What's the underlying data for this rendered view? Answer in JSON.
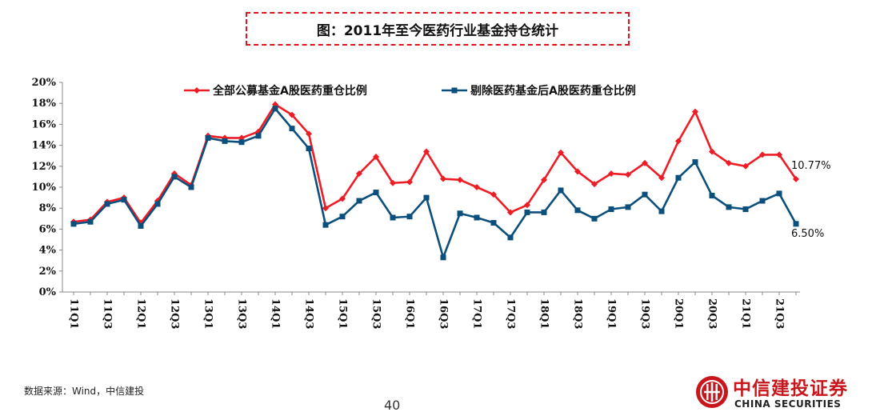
{
  "title": "图：2011年至今医药行业基金持仓统计",
  "source": "数据来源：Wind，中信建投",
  "page_number": "40",
  "logo": {
    "name_cn": "中信建投证券",
    "name_en": "CHINA SECURITIES",
    "icon": "china-securities-logo-icon",
    "color": "#c8161d"
  },
  "chart_data": {
    "type": "line",
    "x": [
      "11Q1",
      "11Q2",
      "11Q3",
      "11Q4",
      "12Q1",
      "12Q2",
      "12Q3",
      "12Q4",
      "13Q1",
      "13Q2",
      "13Q3",
      "13Q4",
      "14Q1",
      "14Q2",
      "14Q3",
      "14Q4",
      "15Q1",
      "15Q2",
      "15Q3",
      "15Q4",
      "16Q1",
      "16Q2",
      "16Q3",
      "16Q4",
      "17Q1",
      "17Q2",
      "17Q3",
      "17Q4",
      "18Q1",
      "18Q2",
      "18Q3",
      "18Q4",
      "19Q1",
      "19Q2",
      "19Q3",
      "19Q4",
      "20Q1",
      "20Q2",
      "20Q3",
      "20Q4",
      "21Q1",
      "21Q2",
      "21Q3",
      "21Q4"
    ],
    "tick_labels": [
      "11Q1",
      "11Q3",
      "12Q1",
      "12Q3",
      "13Q1",
      "13Q3",
      "14Q1",
      "14Q3",
      "15Q1",
      "15Q3",
      "16Q1",
      "16Q3",
      "17Q1",
      "17Q3",
      "18Q1",
      "18Q3",
      "19Q1",
      "19Q3",
      "20Q1",
      "20Q3",
      "21Q1",
      "21Q3"
    ],
    "series": [
      {
        "name": "全部公募基金A股医药重仓比例",
        "color": "#ee1c25",
        "marker": "diamond",
        "values": [
          6.7,
          6.9,
          8.6,
          9.0,
          6.6,
          8.7,
          11.3,
          10.2,
          14.9,
          14.7,
          14.7,
          15.3,
          17.9,
          16.9,
          15.1,
          8.0,
          8.9,
          11.3,
          12.9,
          10.4,
          10.5,
          13.4,
          10.8,
          10.7,
          10.0,
          9.3,
          7.6,
          8.3,
          10.7,
          13.3,
          11.5,
          10.3,
          11.3,
          11.2,
          12.3,
          10.9,
          14.4,
          17.2,
          13.4,
          12.3,
          12.0,
          13.1,
          13.1,
          10.77
        ]
      },
      {
        "name": "剔除医药基金后A股医药重仓比例",
        "color": "#0b4f7c",
        "marker": "square",
        "values": [
          6.5,
          6.7,
          8.4,
          8.8,
          6.3,
          8.4,
          11.0,
          10.0,
          14.7,
          14.4,
          14.3,
          14.9,
          17.5,
          15.6,
          13.7,
          6.4,
          7.2,
          8.7,
          9.5,
          7.1,
          7.2,
          9.0,
          3.3,
          7.5,
          7.1,
          6.6,
          5.2,
          7.6,
          7.6,
          9.7,
          7.8,
          7.0,
          7.9,
          8.1,
          9.3,
          7.7,
          10.9,
          12.4,
          9.2,
          8.1,
          7.9,
          8.7,
          9.4,
          6.5
        ]
      }
    ],
    "end_labels": [
      "10.77%",
      "6.50%"
    ],
    "y_ticks": [
      "0%",
      "2%",
      "4%",
      "6%",
      "8%",
      "10%",
      "12%",
      "14%",
      "16%",
      "18%",
      "20%"
    ],
    "ylim": [
      0,
      20
    ],
    "legend_placement": "top",
    "grid": false
  }
}
